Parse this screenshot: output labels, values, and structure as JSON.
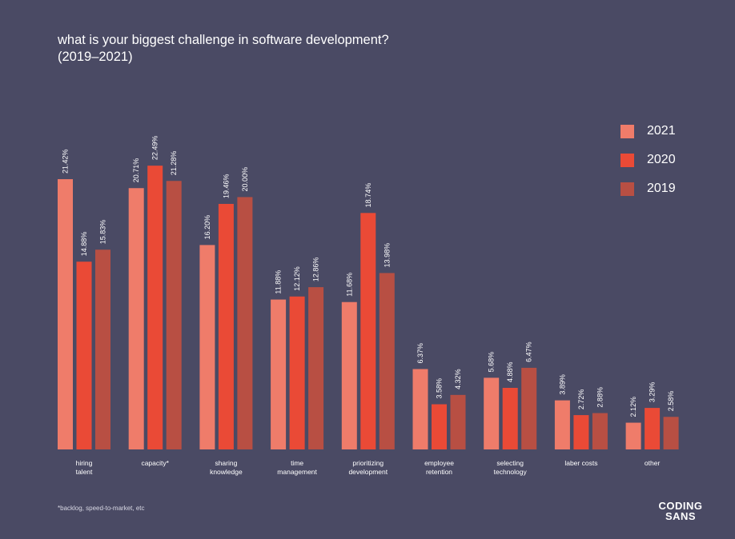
{
  "title": "what is your biggest challenge in software development? (2019–2021)",
  "footnote": "*backlog, speed-to-market, etc",
  "logo": {
    "line1": "CODING",
    "line2": "SANS"
  },
  "colors": {
    "background": "#4a4a64",
    "2021": "#ef7c6a",
    "2020": "#ea4a36",
    "2019": "#b84f43"
  },
  "chart_data": {
    "type": "bar",
    "title": "what is your biggest challenge in software development? (2019–2021)",
    "categories": [
      "hiring talent",
      "capacity*",
      "sharing knowledge",
      "time management",
      "prioritizing development",
      "employee retention",
      "selecting technology",
      "laber costs",
      "other"
    ],
    "series": [
      {
        "name": "2021",
        "color": "#ef7c6a",
        "values": [
          21.42,
          20.71,
          16.2,
          11.88,
          11.68,
          6.37,
          5.68,
          3.89,
          2.12
        ],
        "labels": [
          "21.42%",
          "20.71%",
          "16.20%",
          "11.88%",
          "11.68%",
          "6.37%",
          "5.68%",
          "3.89%",
          "2.12%"
        ]
      },
      {
        "name": "2020",
        "color": "#ea4a36",
        "values": [
          14.88,
          22.49,
          19.46,
          12.12,
          18.74,
          3.58,
          4.88,
          2.72,
          3.29
        ],
        "labels": [
          "14.88%",
          "22.49%",
          "19.46%",
          "12.12%",
          "18.74%",
          "3.58%",
          "4.88%",
          "2.72%",
          "3.29%"
        ]
      },
      {
        "name": "2019",
        "color": "#b84f43",
        "values": [
          15.83,
          21.28,
          20.0,
          12.86,
          13.98,
          4.32,
          6.47,
          2.88,
          2.58
        ],
        "labels": [
          "15.83%",
          "21.28%",
          "20.00%",
          "12.86%",
          "13.98%",
          "4.32%",
          "6.47%",
          "2.88%",
          "2.58%"
        ]
      }
    ],
    "legend": "top-right",
    "grid": false,
    "ylim": [
      0,
      22.5
    ]
  }
}
